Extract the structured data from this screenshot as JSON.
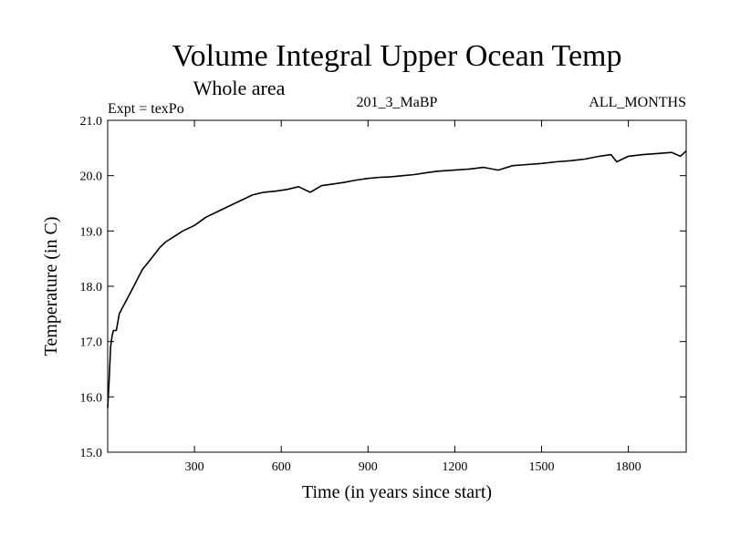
{
  "chart_data": {
    "type": "line",
    "title": "Volume Integral Upper Ocean Temp",
    "subtitle": "Whole area",
    "experiment_label": "Expt = texPo",
    "run_label": "201_3_MaBP",
    "period_label": "ALL_MONTHS",
    "xlabel": "Time (in years since start)",
    "ylabel": "Temperature (in C)",
    "xlim": [
      0,
      2000
    ],
    "ylim": [
      15.0,
      21.0
    ],
    "xticks": [
      300,
      600,
      900,
      1200,
      1500,
      1800
    ],
    "xtick_labels": [
      "300",
      "600",
      "900",
      "1200",
      "1500",
      "1800"
    ],
    "yticks": [
      15.0,
      16.0,
      17.0,
      18.0,
      19.0,
      20.0,
      21.0
    ],
    "ytick_labels": [
      "15.0",
      "16.0",
      "17.0",
      "18.0",
      "19.0",
      "20.0",
      "21.0"
    ],
    "grid": false,
    "series": [
      {
        "name": "Volume integral upper ocean temperature",
        "color": "#000000",
        "x": [
          0,
          5,
          10,
          15,
          20,
          30,
          40,
          50,
          60,
          70,
          80,
          100,
          120,
          150,
          180,
          200,
          230,
          260,
          300,
          340,
          380,
          420,
          460,
          500,
          540,
          580,
          620,
          660,
          700,
          740,
          780,
          820,
          860,
          900,
          940,
          980,
          1020,
          1060,
          1100,
          1140,
          1200,
          1250,
          1300,
          1350,
          1400,
          1450,
          1500,
          1550,
          1600,
          1650,
          1700,
          1740,
          1760,
          1800,
          1850,
          1900,
          1950,
          1980,
          2000
        ],
        "y": [
          15.8,
          16.3,
          16.9,
          17.1,
          17.2,
          17.2,
          17.5,
          17.6,
          17.7,
          17.8,
          17.9,
          18.1,
          18.3,
          18.5,
          18.7,
          18.8,
          18.9,
          19.0,
          19.1,
          19.25,
          19.35,
          19.45,
          19.55,
          19.65,
          19.7,
          19.72,
          19.75,
          19.8,
          19.7,
          19.82,
          19.85,
          19.88,
          19.92,
          19.95,
          19.97,
          19.98,
          20.0,
          20.02,
          20.05,
          20.08,
          20.1,
          20.12,
          20.15,
          20.1,
          20.18,
          20.2,
          20.22,
          20.25,
          20.27,
          20.3,
          20.35,
          20.38,
          20.25,
          20.35,
          20.38,
          20.4,
          20.42,
          20.35,
          20.45
        ]
      }
    ]
  }
}
